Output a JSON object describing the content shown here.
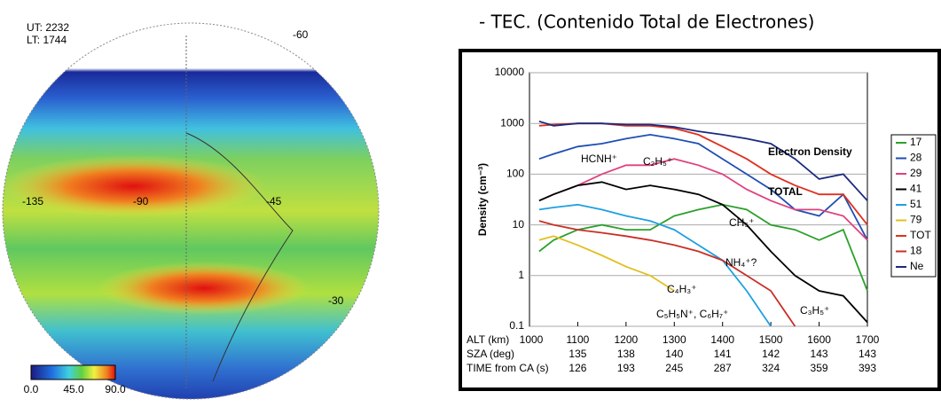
{
  "heading": "- TEC. (Contenido Total de Electrones)",
  "globe": {
    "time_labels": [
      "UT: 2232",
      "LT: 1744"
    ],
    "grid_labels": [
      "-60",
      "-135",
      "-90",
      "-45",
      "-30"
    ],
    "colorbar_labels": [
      "0.0",
      "45.0",
      "90.0"
    ]
  },
  "chart_data": {
    "type": "line",
    "y_label": "Density (cm⁻³)",
    "row_labels": [
      "ALT (km)",
      "SZA (deg)",
      "TIME from CA (s)"
    ],
    "x": [
      1020,
      1050,
      1100,
      1150,
      1200,
      1250,
      1300,
      1350,
      1400,
      1450,
      1500,
      1550,
      1600,
      1650,
      1700
    ],
    "xlim": [
      1000,
      1700
    ],
    "xticks": [
      1000,
      1100,
      1200,
      1300,
      1400,
      1500,
      1600,
      1700
    ],
    "sza": [
      135,
      138,
      140,
      141,
      142,
      143,
      143
    ],
    "time": [
      126,
      193,
      245,
      287,
      324,
      359,
      393
    ],
    "ylim": [
      0.1,
      10000
    ],
    "yticks": [
      0.1,
      1,
      10,
      100,
      1000,
      10000
    ],
    "log_y": true,
    "grid": true,
    "legend": "right",
    "series": [
      {
        "name": "17",
        "color": "#2ca02c",
        "values": [
          3,
          5,
          8,
          10,
          8,
          8,
          15,
          20,
          25,
          20,
          10,
          8,
          5,
          8,
          0.5
        ]
      },
      {
        "name": "28",
        "color": "#1f4fb4",
        "values": [
          200,
          250,
          350,
          400,
          500,
          600,
          500,
          400,
          200,
          100,
          50,
          20,
          15,
          40,
          5
        ]
      },
      {
        "name": "29",
        "color": "#e0407f",
        "values": [
          30,
          40,
          60,
          100,
          150,
          150,
          200,
          150,
          100,
          50,
          30,
          20,
          20,
          15,
          5
        ]
      },
      {
        "name": "41",
        "color": "#000000",
        "values": [
          30,
          40,
          60,
          70,
          50,
          60,
          50,
          40,
          25,
          10,
          3,
          1,
          0.5,
          0.4,
          0.12
        ]
      },
      {
        "name": "51",
        "color": "#1ea0e0",
        "values": [
          20,
          22,
          25,
          20,
          15,
          12,
          8,
          4,
          2,
          0.5,
          0.1,
          null,
          null,
          null,
          null
        ]
      },
      {
        "name": "79",
        "color": "#e0c020",
        "values": [
          5,
          6,
          4,
          2.5,
          1.5,
          1,
          0.5,
          null,
          null,
          null,
          null,
          null,
          null,
          null,
          null
        ]
      },
      {
        "name": "TOT",
        "color": "#e03020",
        "values": [
          900,
          950,
          1000,
          1000,
          900,
          900,
          800,
          600,
          350,
          200,
          100,
          60,
          40,
          40,
          10
        ]
      },
      {
        "name": "18",
        "color": "#c83028",
        "values": [
          12,
          10,
          8,
          7,
          6,
          5,
          4,
          3,
          2,
          1,
          0.5,
          0.1,
          null,
          null,
          null
        ]
      },
      {
        "name": "Ne",
        "color": "#1a2a80",
        "values": [
          1100,
          900,
          1000,
          1000,
          950,
          950,
          850,
          700,
          600,
          500,
          400,
          200,
          80,
          100,
          30
        ]
      }
    ],
    "annotations": [
      "Electron Density",
      "TOTAL",
      "HCNH⁺",
      "C₂H₅⁺",
      "CH₅⁺",
      "NH₄⁺?",
      "C₄H₃⁺",
      "C₅H₅N⁺, C₆H₇⁺",
      "C₃H₅⁺"
    ]
  }
}
